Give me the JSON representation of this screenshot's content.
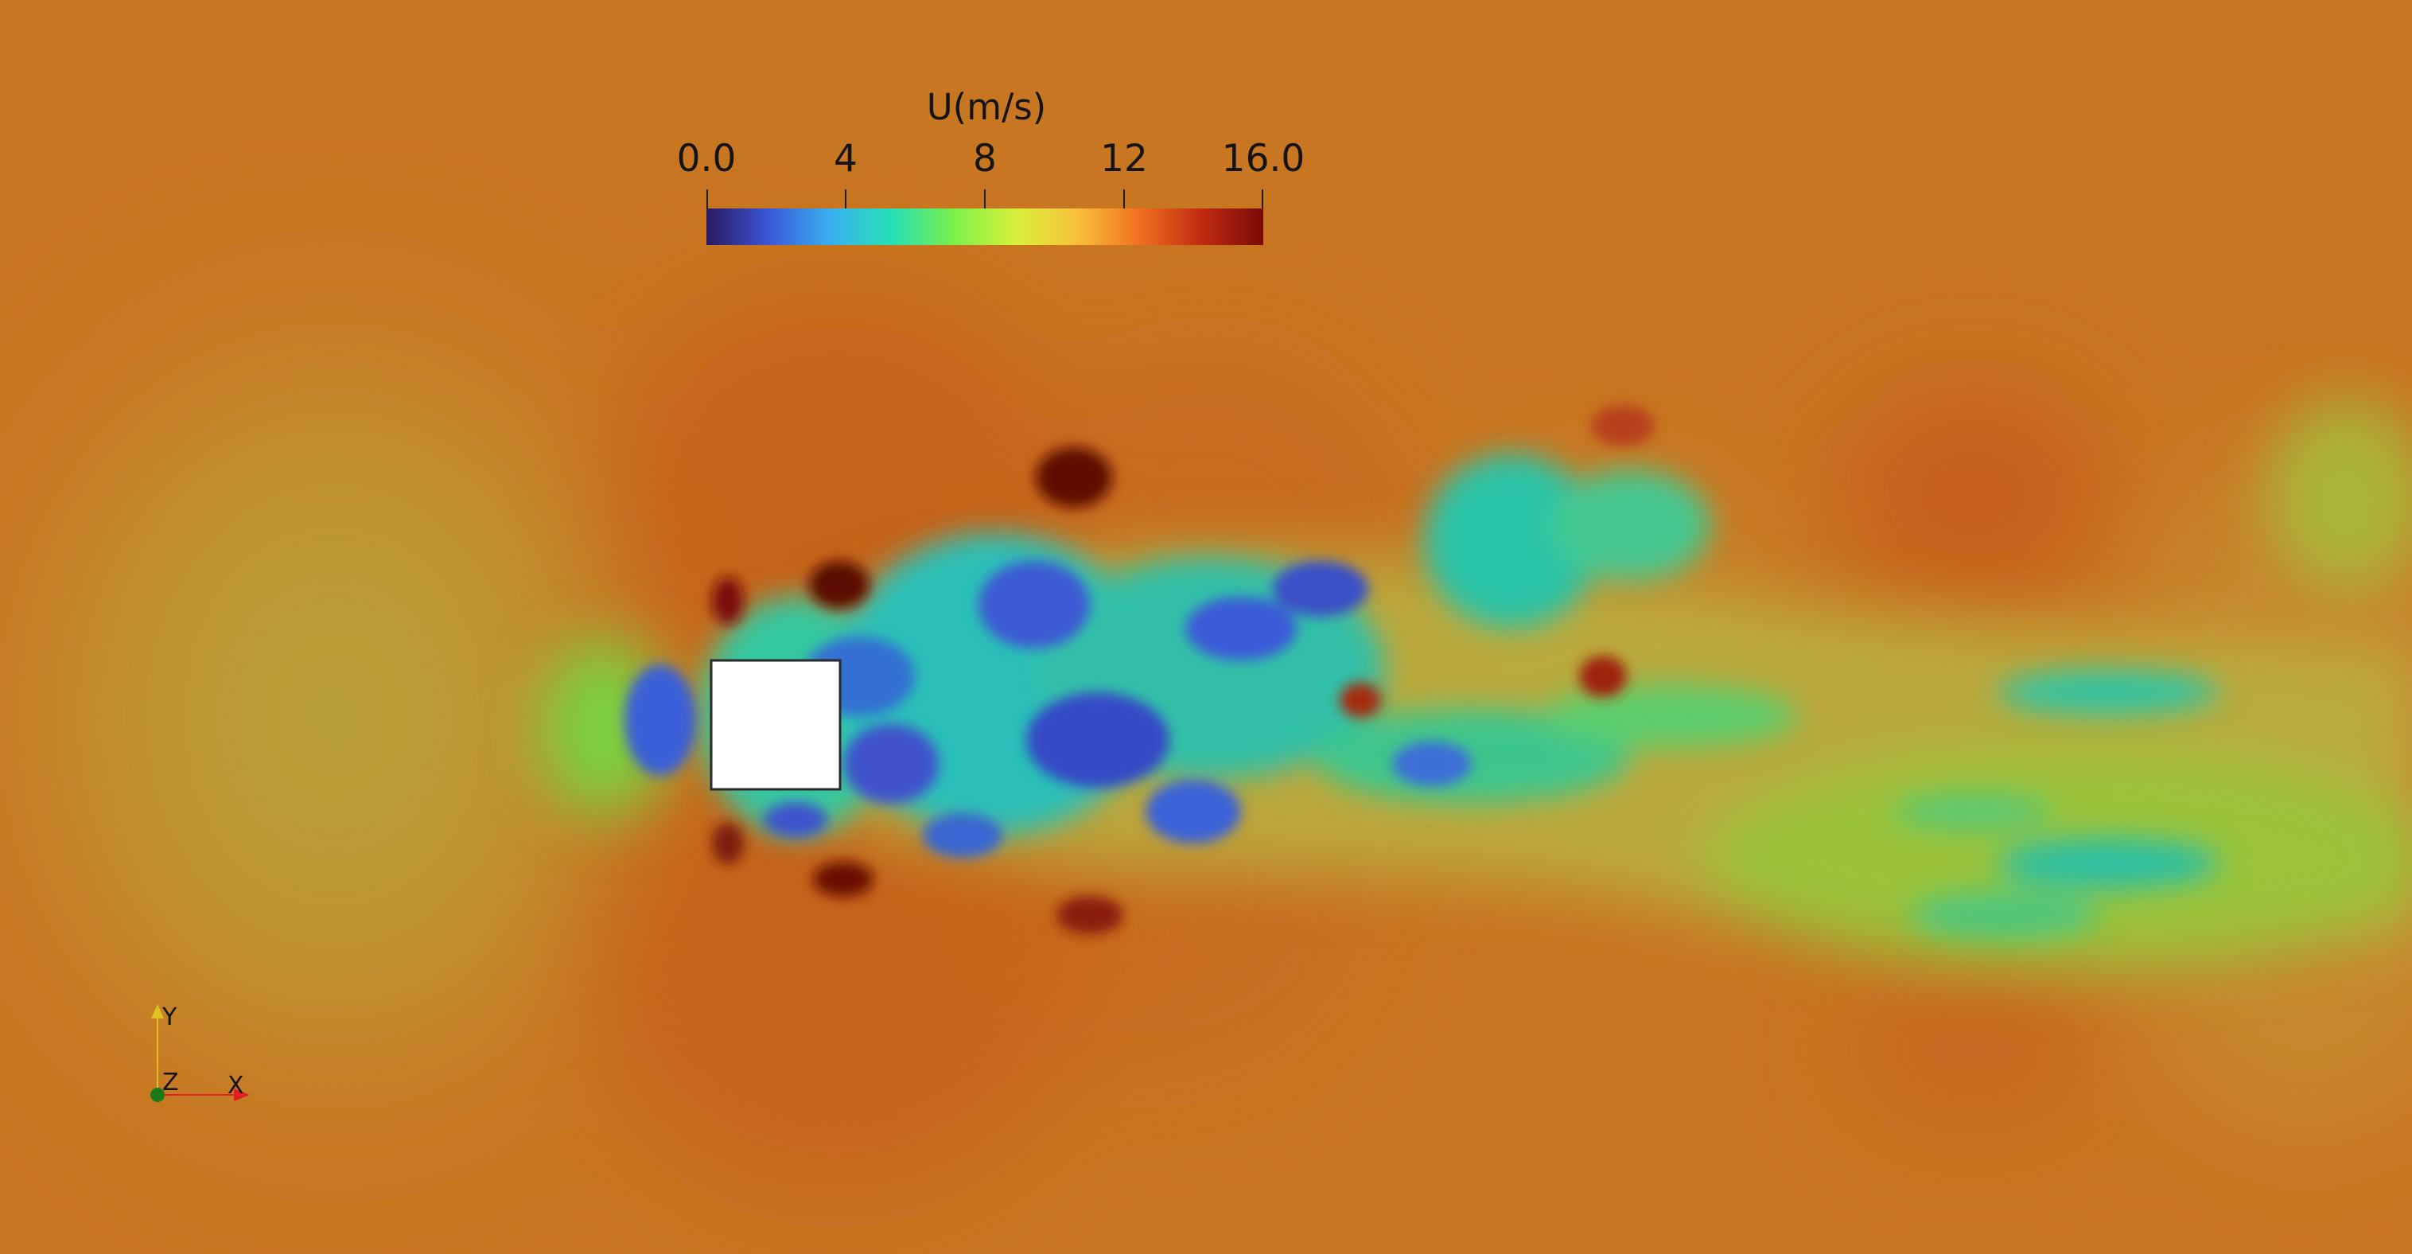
{
  "legend": {
    "title": "U(m/s)",
    "ticks": [
      {
        "label": "0.0",
        "value": 0
      },
      {
        "label": "4",
        "value": 4
      },
      {
        "label": "8",
        "value": 8
      },
      {
        "label": "12",
        "value": 12
      },
      {
        "label": "16.0",
        "value": 16
      }
    ],
    "range": [
      0,
      16
    ],
    "colormap": [
      "#2a1a5e",
      "#3b56d8",
      "#3ab0f0",
      "#25e0b5",
      "#7cf04a",
      "#d8f03a",
      "#f8c03a",
      "#f07020",
      "#c02a10",
      "#7a0a08"
    ]
  },
  "axes": {
    "x_label": "X",
    "y_label": "Y",
    "z_label": "Z",
    "x_color": "#e02020",
    "y_color": "#e0c020",
    "z_color": "#1a7a1a"
  },
  "scene": {
    "background_color": "#c97622",
    "obstacle_color": "#ffffff"
  }
}
